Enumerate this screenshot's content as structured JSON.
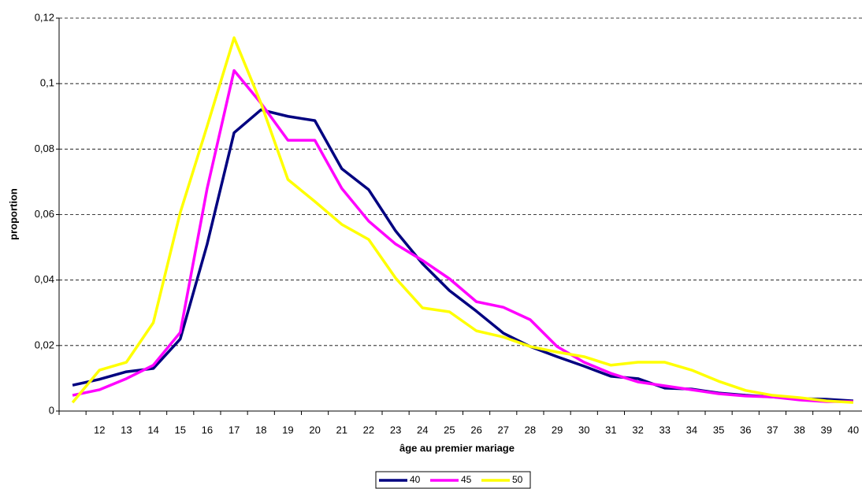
{
  "chart_data": {
    "type": "line",
    "x_label": "âge au premier mariage",
    "y_label": "proportion",
    "categories": [
      null,
      "12",
      "13",
      "14",
      "15",
      "16",
      "17",
      "18",
      "19",
      "20",
      "21",
      "22",
      "23",
      "24",
      "25",
      "26",
      "27",
      "28",
      "29",
      "30",
      "31",
      "32",
      "33",
      "34",
      "35",
      "36",
      "37",
      "38",
      "39",
      "40"
    ],
    "series": [
      {
        "name": "40",
        "color": "#000080",
        "values": [
          0.0079,
          0.0097,
          0.012,
          0.013,
          0.022,
          0.051,
          0.085,
          0.092,
          0.09,
          0.0887,
          0.074,
          0.0676,
          0.055,
          0.045,
          0.0368,
          0.0305,
          0.0238,
          0.0197,
          0.0166,
          0.0137,
          0.0106,
          0.0099,
          0.007,
          0.0067,
          0.0055,
          0.0048,
          0.0043,
          0.0038,
          0.0036,
          0.0031
        ]
      },
      {
        "name": "45",
        "color": "#ff00ff",
        "values": [
          0.0048,
          0.0065,
          0.0099,
          0.014,
          0.024,
          0.068,
          0.104,
          0.094,
          0.0827,
          0.0827,
          0.068,
          0.058,
          0.051,
          0.046,
          0.0404,
          0.0334,
          0.0317,
          0.0279,
          0.0197,
          0.0149,
          0.0115,
          0.0089,
          0.0077,
          0.0065,
          0.0053,
          0.0046,
          0.0043,
          0.0034,
          0.0029,
          0.0029
        ]
      },
      {
        "name": "50",
        "color": "#ffff00",
        "values": [
          0.0026,
          0.0125,
          0.0149,
          0.027,
          0.0606,
          0.087,
          0.114,
          0.094,
          0.0707,
          0.064,
          0.057,
          0.0524,
          0.0406,
          0.0315,
          0.0303,
          0.0245,
          0.0226,
          0.0197,
          0.018,
          0.0166,
          0.014,
          0.0149,
          0.0149,
          0.0125,
          0.0091,
          0.0063,
          0.0048,
          0.0041,
          0.0031,
          0.0026
        ]
      }
    ],
    "ylim": [
      0,
      0.12
    ],
    "yticks": [
      0,
      {
        "value": 0.02,
        "label": "0,02"
      },
      {
        "value": 0.04,
        "label": "0,04"
      },
      {
        "value": 0.06,
        "label": "0,06"
      },
      {
        "value": 0.08,
        "label": "0,08"
      },
      {
        "value": 0.1,
        "label": "0,1"
      },
      {
        "value": 0.12,
        "label": "0,12"
      }
    ],
    "grid": true,
    "legend": "bottom"
  }
}
